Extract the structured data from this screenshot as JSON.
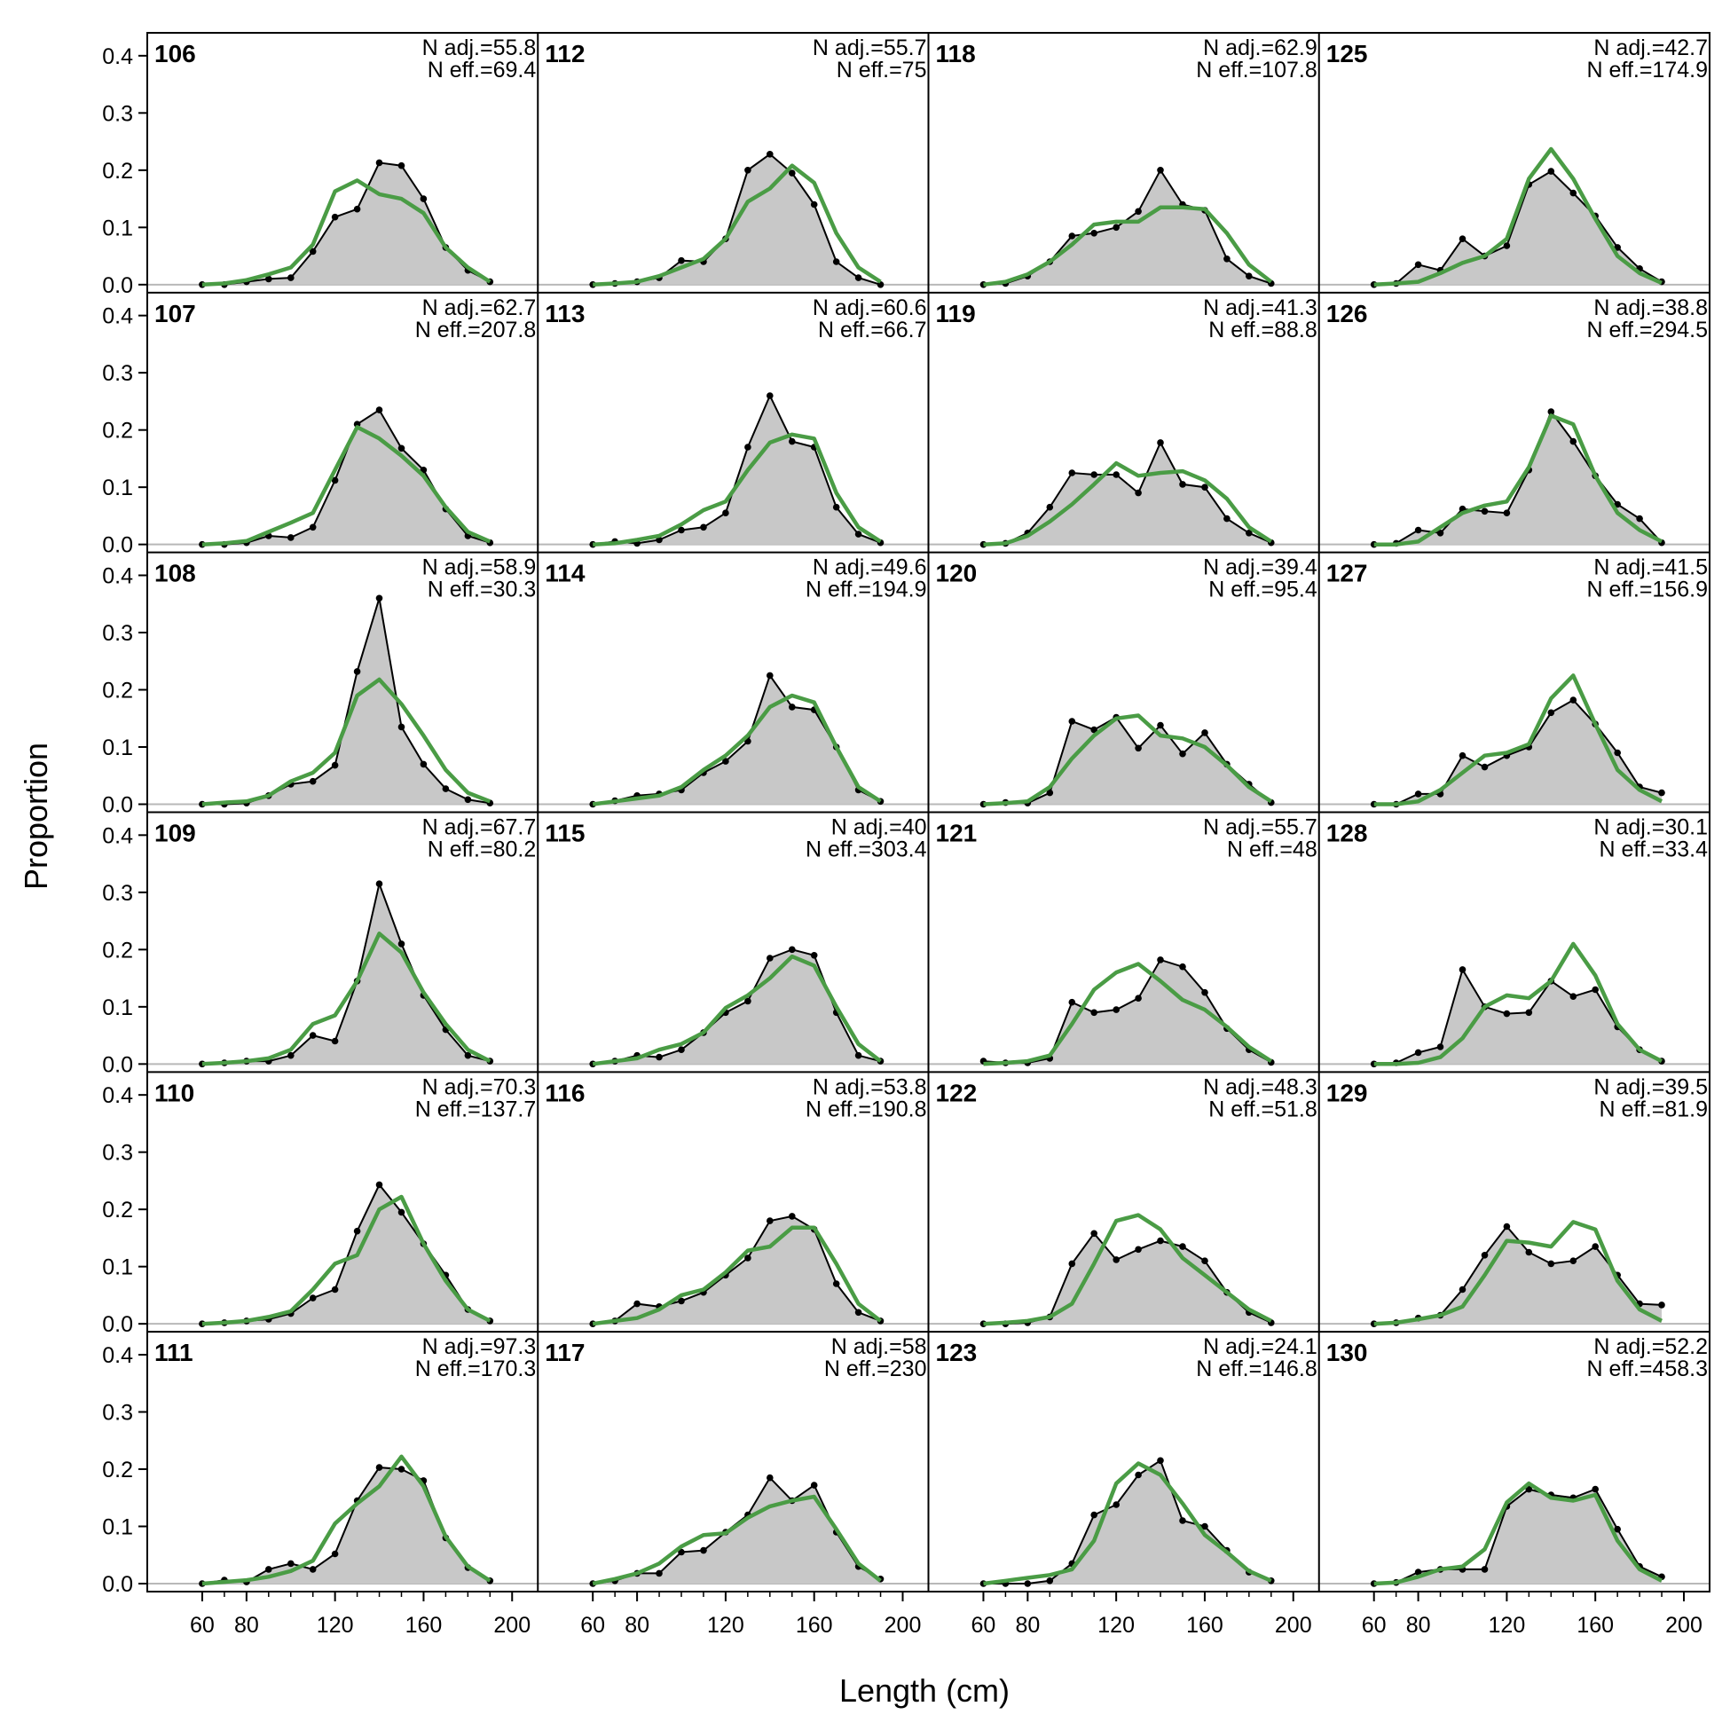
{
  "colors": {
    "observed_fill": "#c8c8c8",
    "observed_line": "#000000",
    "expected_line": "#4a9c45",
    "zero_line": "#b8b8b8"
  },
  "chart_data": {
    "type": "line",
    "xlabel": "Length (cm)",
    "ylabel": "Proportion",
    "xlim": [
      50,
      200
    ],
    "ylim": [
      0,
      0.42
    ],
    "x_ticks": [
      60,
      80,
      120,
      160,
      200
    ],
    "y_ticks": [
      0.0,
      0.1,
      0.2,
      0.3,
      0.4
    ],
    "y_tick_labels": [
      "0.0",
      "0.1",
      "0.2",
      "0.3",
      "0.4"
    ],
    "x": [
      60,
      70,
      80,
      90,
      100,
      110,
      120,
      130,
      140,
      150,
      160,
      170,
      180,
      190
    ],
    "grid": false,
    "layout": "6 rows x 4 columns, filled column-wise",
    "series_info": [
      "observed (grey polygon with black line and points)",
      "expected (green line)"
    ],
    "panels": [
      {
        "label": "106",
        "n_adj": "N adj.=55.8",
        "n_eff": "N eff.=69.4",
        "obs": [
          0,
          0,
          0.005,
          0.01,
          0.012,
          0.058,
          0.118,
          0.132,
          0.213,
          0.208,
          0.15,
          0.065,
          0.025,
          0.005
        ],
        "exp": [
          0,
          0.002,
          0.008,
          0.018,
          0.03,
          0.07,
          0.163,
          0.182,
          0.158,
          0.15,
          0.125,
          0.065,
          0.03,
          0.005
        ]
      },
      {
        "label": "107",
        "n_adj": "N adj.=62.7",
        "n_eff": "N eff.=207.8",
        "obs": [
          0,
          0,
          0.003,
          0.015,
          0.012,
          0.03,
          0.112,
          0.21,
          0.235,
          0.168,
          0.13,
          0.062,
          0.015,
          0.003
        ],
        "exp": [
          0,
          0.002,
          0.006,
          0.022,
          0.038,
          0.055,
          0.13,
          0.205,
          0.185,
          0.155,
          0.12,
          0.065,
          0.022,
          0.005
        ]
      },
      {
        "label": "108",
        "n_adj": "N adj.=58.9",
        "n_eff": "N eff.=30.3",
        "obs": [
          0,
          0,
          0.002,
          0.015,
          0.035,
          0.04,
          0.068,
          0.232,
          0.36,
          0.135,
          0.07,
          0.027,
          0.008,
          0.002
        ],
        "exp": [
          0,
          0.003,
          0.005,
          0.015,
          0.04,
          0.055,
          0.09,
          0.19,
          0.218,
          0.175,
          0.12,
          0.06,
          0.02,
          0.005
        ]
      },
      {
        "label": "109",
        "n_adj": "N adj.=67.7",
        "n_eff": "N eff.=80.2",
        "obs": [
          0,
          0.002,
          0.005,
          0.005,
          0.015,
          0.05,
          0.04,
          0.145,
          0.315,
          0.21,
          0.12,
          0.06,
          0.015,
          0.005
        ],
        "exp": [
          0,
          0.002,
          0.005,
          0.01,
          0.025,
          0.07,
          0.085,
          0.145,
          0.228,
          0.195,
          0.125,
          0.07,
          0.025,
          0.005
        ]
      },
      {
        "label": "110",
        "n_adj": "N adj.=70.3",
        "n_eff": "N eff.=137.7",
        "obs": [
          0,
          0.002,
          0.005,
          0.008,
          0.018,
          0.045,
          0.06,
          0.162,
          0.243,
          0.195,
          0.14,
          0.085,
          0.025,
          0.005
        ],
        "exp": [
          0,
          0.002,
          0.005,
          0.012,
          0.022,
          0.06,
          0.105,
          0.12,
          0.2,
          0.222,
          0.14,
          0.075,
          0.025,
          0.005
        ]
      },
      {
        "label": "111",
        "n_adj": "N adj.=97.3",
        "n_eff": "N eff.=170.3",
        "obs": [
          0,
          0.006,
          0.003,
          0.025,
          0.035,
          0.025,
          0.052,
          0.145,
          0.203,
          0.2,
          0.18,
          0.08,
          0.028,
          0.005
        ],
        "exp": [
          0,
          0.003,
          0.006,
          0.012,
          0.022,
          0.04,
          0.105,
          0.14,
          0.17,
          0.222,
          0.17,
          0.082,
          0.03,
          0.005
        ]
      },
      {
        "label": "112",
        "n_adj": "N adj.=55.7",
        "n_eff": "N eff.=75",
        "obs": [
          0,
          0.002,
          0.005,
          0.012,
          0.042,
          0.04,
          0.08,
          0.2,
          0.228,
          0.195,
          0.14,
          0.04,
          0.012,
          0
        ],
        "exp": [
          0,
          0.002,
          0.005,
          0.015,
          0.03,
          0.045,
          0.08,
          0.145,
          0.168,
          0.208,
          0.178,
          0.09,
          0.03,
          0.005
        ]
      },
      {
        "label": "113",
        "n_adj": "N adj.=60.6",
        "n_eff": "N eff.=66.7",
        "obs": [
          0,
          0.005,
          0.002,
          0.008,
          0.025,
          0.03,
          0.055,
          0.17,
          0.26,
          0.18,
          0.17,
          0.065,
          0.018,
          0.003
        ],
        "exp": [
          0,
          0.002,
          0.008,
          0.015,
          0.035,
          0.06,
          0.075,
          0.13,
          0.178,
          0.192,
          0.185,
          0.09,
          0.03,
          0.005
        ]
      },
      {
        "label": "114",
        "n_adj": "N adj.=49.6",
        "n_eff": "N eff.=194.9",
        "obs": [
          0,
          0.006,
          0.015,
          0.018,
          0.025,
          0.055,
          0.075,
          0.11,
          0.225,
          0.17,
          0.165,
          0.1,
          0.025,
          0.005
        ],
        "exp": [
          0,
          0.005,
          0.01,
          0.015,
          0.03,
          0.06,
          0.085,
          0.12,
          0.17,
          0.19,
          0.178,
          0.1,
          0.03,
          0.005
        ]
      },
      {
        "label": "115",
        "n_adj": "N adj.=40",
        "n_eff": "N eff.=303.4",
        "obs": [
          0,
          0.005,
          0.015,
          0.012,
          0.025,
          0.055,
          0.09,
          0.11,
          0.185,
          0.2,
          0.19,
          0.09,
          0.015,
          0.005
        ],
        "exp": [
          0,
          0.005,
          0.01,
          0.025,
          0.035,
          0.055,
          0.098,
          0.12,
          0.15,
          0.188,
          0.172,
          0.1,
          0.035,
          0.005
        ]
      },
      {
        "label": "116",
        "n_adj": "N adj.=53.8",
        "n_eff": "N eff.=190.8",
        "obs": [
          0,
          0.005,
          0.035,
          0.03,
          0.04,
          0.055,
          0.085,
          0.115,
          0.18,
          0.188,
          0.165,
          0.07,
          0.02,
          0.005
        ],
        "exp": [
          0,
          0.005,
          0.01,
          0.025,
          0.05,
          0.06,
          0.09,
          0.128,
          0.135,
          0.168,
          0.168,
          0.105,
          0.035,
          0.005
        ]
      },
      {
        "label": "117",
        "n_adj": "N adj.=58",
        "n_eff": "N eff.=230",
        "obs": [
          0,
          0.005,
          0.018,
          0.018,
          0.055,
          0.058,
          0.09,
          0.12,
          0.185,
          0.145,
          0.172,
          0.09,
          0.03,
          0.008
        ],
        "exp": [
          0,
          0.008,
          0.018,
          0.035,
          0.065,
          0.085,
          0.088,
          0.115,
          0.135,
          0.145,
          0.152,
          0.095,
          0.035,
          0.005
        ]
      },
      {
        "label": "118",
        "n_adj": "N adj.=62.9",
        "n_eff": "N eff.=107.8",
        "obs": [
          0,
          0.002,
          0.015,
          0.04,
          0.085,
          0.09,
          0.1,
          0.128,
          0.2,
          0.14,
          0.13,
          0.045,
          0.015,
          0.002
        ],
        "exp": [
          0,
          0.005,
          0.018,
          0.04,
          0.07,
          0.105,
          0.11,
          0.11,
          0.135,
          0.135,
          0.132,
          0.09,
          0.035,
          0.005
        ]
      },
      {
        "label": "119",
        "n_adj": "N adj.=41.3",
        "n_eff": "N eff.=88.8",
        "obs": [
          0,
          0.002,
          0.02,
          0.065,
          0.125,
          0.122,
          0.122,
          0.09,
          0.178,
          0.105,
          0.1,
          0.045,
          0.02,
          0.003
        ],
        "exp": [
          0,
          0.002,
          0.015,
          0.04,
          0.07,
          0.105,
          0.142,
          0.12,
          0.125,
          0.128,
          0.112,
          0.08,
          0.03,
          0.005
        ]
      },
      {
        "label": "120",
        "n_adj": "N adj.=39.4",
        "n_eff": "N eff.=95.4",
        "obs": [
          0,
          0.003,
          0.002,
          0.02,
          0.145,
          0.13,
          0.152,
          0.098,
          0.138,
          0.088,
          0.125,
          0.07,
          0.035,
          0.003
        ],
        "exp": [
          0,
          0.002,
          0.005,
          0.03,
          0.08,
          0.12,
          0.15,
          0.155,
          0.12,
          0.115,
          0.1,
          0.068,
          0.03,
          0.005
        ]
      },
      {
        "label": "121",
        "n_adj": "N adj.=55.7",
        "n_eff": "N eff.=48",
        "obs": [
          0.005,
          0.002,
          0.002,
          0.01,
          0.108,
          0.09,
          0.095,
          0.115,
          0.182,
          0.17,
          0.125,
          0.062,
          0.025,
          0.003
        ],
        "exp": [
          0,
          0.002,
          0.005,
          0.015,
          0.07,
          0.13,
          0.16,
          0.175,
          0.145,
          0.112,
          0.095,
          0.065,
          0.03,
          0.005
        ]
      },
      {
        "label": "122",
        "n_adj": "N adj.=48.3",
        "n_eff": "N eff.=51.8",
        "obs": [
          0,
          0,
          0.002,
          0.012,
          0.105,
          0.158,
          0.112,
          0.13,
          0.145,
          0.135,
          0.11,
          0.055,
          0.02,
          0.002
        ],
        "exp": [
          0,
          0.002,
          0.005,
          0.012,
          0.035,
          0.105,
          0.18,
          0.19,
          0.165,
          0.115,
          0.085,
          0.055,
          0.025,
          0.005
        ]
      },
      {
        "label": "123",
        "n_adj": "N adj.=24.1",
        "n_eff": "N eff.=146.8",
        "obs": [
          0,
          0,
          0,
          0.005,
          0.035,
          0.12,
          0.138,
          0.19,
          0.215,
          0.11,
          0.1,
          0.058,
          0.02,
          0.005
        ],
        "exp": [
          0,
          0.005,
          0.01,
          0.015,
          0.025,
          0.075,
          0.175,
          0.21,
          0.19,
          0.14,
          0.085,
          0.055,
          0.022,
          0.005
        ]
      },
      {
        "label": "125",
        "n_adj": "N adj.=42.7",
        "n_eff": "N eff.=174.9",
        "obs": [
          0,
          0.002,
          0.035,
          0.025,
          0.08,
          0.05,
          0.068,
          0.175,
          0.198,
          0.16,
          0.12,
          0.065,
          0.028,
          0.005
        ],
        "exp": [
          0,
          0.002,
          0.005,
          0.02,
          0.038,
          0.05,
          0.08,
          0.185,
          0.237,
          0.185,
          0.115,
          0.05,
          0.02,
          0.003
        ]
      },
      {
        "label": "126",
        "n_adj": "N adj.=38.8",
        "n_eff": "N eff.=294.5",
        "obs": [
          0,
          0.002,
          0.025,
          0.02,
          0.062,
          0.058,
          0.055,
          0.13,
          0.232,
          0.18,
          0.12,
          0.07,
          0.045,
          0.003
        ],
        "exp": [
          0,
          0,
          0.005,
          0.03,
          0.055,
          0.068,
          0.075,
          0.135,
          0.225,
          0.21,
          0.12,
          0.055,
          0.025,
          0.005
        ]
      },
      {
        "label": "127",
        "n_adj": "N adj.=41.5",
        "n_eff": "N eff.=156.9",
        "obs": [
          0,
          0,
          0.018,
          0.018,
          0.085,
          0.065,
          0.085,
          0.1,
          0.16,
          0.182,
          0.14,
          0.09,
          0.03,
          0.02
        ],
        "exp": [
          0,
          0,
          0.005,
          0.025,
          0.055,
          0.085,
          0.09,
          0.105,
          0.185,
          0.225,
          0.14,
          0.06,
          0.025,
          0.005
        ]
      },
      {
        "label": "128",
        "n_adj": "N adj.=30.1",
        "n_eff": "N eff.=33.4",
        "obs": [
          0,
          0.002,
          0.02,
          0.03,
          0.165,
          0.1,
          0.088,
          0.09,
          0.145,
          0.118,
          0.13,
          0.065,
          0.025,
          0.005
        ],
        "exp": [
          0,
          0,
          0.002,
          0.012,
          0.045,
          0.1,
          0.12,
          0.115,
          0.145,
          0.21,
          0.155,
          0.07,
          0.025,
          0.005
        ]
      },
      {
        "label": "129",
        "n_adj": "N adj.=39.5",
        "n_eff": "N eff.=81.9",
        "obs": [
          0,
          0.002,
          0.01,
          0.015,
          0.06,
          0.12,
          0.17,
          0.125,
          0.105,
          0.11,
          0.135,
          0.085,
          0.035,
          0.033
        ],
        "exp": [
          0,
          0.002,
          0.008,
          0.015,
          0.03,
          0.085,
          0.145,
          0.142,
          0.135,
          0.178,
          0.165,
          0.075,
          0.025,
          0.005
        ]
      },
      {
        "label": "130",
        "n_adj": "N adj.=52.2",
        "n_eff": "N eff.=458.3",
        "obs": [
          0,
          0.002,
          0.02,
          0.025,
          0.025,
          0.025,
          0.135,
          0.165,
          0.155,
          0.15,
          0.165,
          0.095,
          0.03,
          0.012
        ],
        "exp": [
          0,
          0.002,
          0.012,
          0.025,
          0.03,
          0.06,
          0.142,
          0.175,
          0.15,
          0.145,
          0.155,
          0.075,
          0.025,
          0.005
        ]
      }
    ]
  }
}
